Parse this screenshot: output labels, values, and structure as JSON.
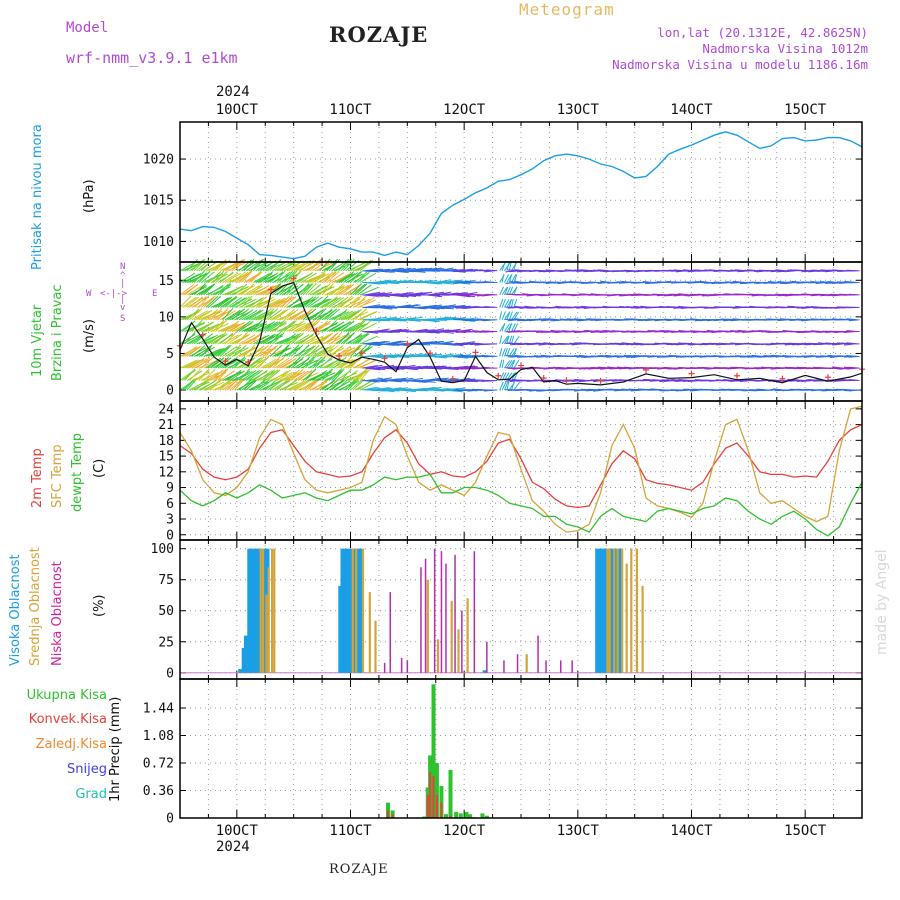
{
  "header": {
    "model_label": "Model",
    "model_name": "wrf-nmm_v3.9.1 e1km",
    "title": "ROZAJE",
    "meteogram": "Meteogram",
    "lonlat": "lon,lat (20.1312E, 42.8625N)",
    "elevation": "Nadmorska Visina 1012m",
    "model_elevation": "Nadmorska Visina u modelu 1186.16m",
    "year": "2024",
    "footer": "ROZAJE",
    "watermark": "made by Angel"
  },
  "colors": {
    "pressure": "#1a9ee6",
    "temp2m": "#e8403a",
    "sfc": "#d4a43a",
    "dewpt": "#2ec22e",
    "high": "#1a9ee6",
    "mid": "#d4a43a",
    "low": "#b02fb0",
    "total": "#2ec22e",
    "convective": "#e8403a",
    "frozen": "#f08a30",
    "snow": "#4040e0",
    "graupel": "#20c0b0",
    "purple_text": "#b04ad8",
    "orange_text": "#e8b860"
  },
  "x_axis": {
    "labels": [
      "10OCT",
      "11OCT",
      "12OCT",
      "13OCT",
      "14OCT",
      "15OCT"
    ],
    "range_days": [
      9.5,
      15.5
    ]
  },
  "chart_data": [
    {
      "type": "line",
      "panel": "pressure",
      "label": "Pritisak na nivou mora",
      "ylabel": "(hPa)",
      "yticks": [
        1010,
        1015,
        1020
      ],
      "ylim": [
        1007.5,
        1024.5
      ],
      "series": [
        {
          "x": [
            9.5,
            9.6,
            9.7,
            9.8,
            9.9,
            10.0,
            10.1,
            10.2,
            10.3,
            10.4,
            10.5,
            10.6,
            10.7,
            10.8,
            10.9,
            11.0,
            11.1,
            11.2,
            11.3,
            11.4,
            11.5,
            11.6,
            11.7,
            11.8,
            11.9,
            12.0,
            12.1,
            12.2,
            12.3,
            12.4,
            12.5,
            12.6,
            12.7,
            12.8,
            12.9,
            13.0,
            13.1,
            13.2,
            13.3,
            13.4,
            13.5,
            13.6,
            13.7,
            13.8,
            13.9,
            14.0,
            14.1,
            14.2,
            14.3,
            14.4,
            14.5,
            14.6,
            14.7,
            14.8,
            14.9,
            15.0,
            15.1,
            15.2,
            15.3,
            15.4,
            15.5
          ],
          "values": [
            1011.5,
            1011.3,
            1011.8,
            1011.7,
            1011.2,
            1010.4,
            1009.6,
            1008.4,
            1008.3,
            1008.1,
            1007.9,
            1008.2,
            1009.3,
            1009.8,
            1009.3,
            1009.1,
            1008.7,
            1008.7,
            1008.3,
            1008.7,
            1008.4,
            1009.5,
            1011.0,
            1013.4,
            1014.4,
            1015.1,
            1015.9,
            1016.5,
            1017.3,
            1017.5,
            1018.1,
            1018.8,
            1019.8,
            1020.4,
            1020.6,
            1020.4,
            1020.0,
            1019.4,
            1019.1,
            1018.5,
            1017.7,
            1017.9,
            1019.1,
            1020.6,
            1021.2,
            1021.7,
            1022.3,
            1022.9,
            1023.3,
            1022.9,
            1022.1,
            1021.3,
            1021.6,
            1022.5,
            1022.6,
            1022.2,
            1022.3,
            1022.6,
            1022.6,
            1022.2,
            1021.5
          ]
        }
      ]
    },
    {
      "type": "line",
      "panel": "wind",
      "label1": "10m Vjetar",
      "label2": "Brzina i Pravac",
      "ylabel": "(m/s)",
      "compass": {
        "north": "N",
        "west": "W",
        "east": "E",
        "south": "S"
      },
      "yticks": [
        0,
        5,
        10,
        15
      ],
      "ylim": [
        -1.5,
        17.5
      ],
      "series": [
        {
          "name": "speed",
          "x": [
            9.5,
            9.6,
            9.7,
            9.8,
            9.9,
            10.0,
            10.1,
            10.2,
            10.3,
            10.4,
            10.5,
            10.6,
            10.7,
            10.8,
            10.9,
            11.0,
            11.1,
            11.2,
            11.3,
            11.4,
            11.5,
            11.6,
            11.7,
            11.8,
            11.9,
            12.0,
            12.1,
            12.2,
            12.3,
            12.4,
            12.5,
            12.6,
            12.7,
            12.8,
            12.9,
            13.0,
            13.2,
            13.4,
            13.6,
            13.8,
            14.0,
            14.2,
            14.4,
            14.6,
            14.8,
            15.0,
            15.2,
            15.4,
            15.5
          ],
          "values": [
            5.5,
            9.2,
            7.0,
            4.5,
            3.4,
            4.2,
            3.3,
            6.6,
            13.2,
            14.2,
            14.7,
            10.8,
            7.5,
            4.9,
            4.1,
            3.7,
            4.5,
            4.2,
            3.8,
            2.5,
            5.8,
            6.9,
            4.5,
            1.2,
            1.0,
            1.3,
            4.6,
            2.4,
            1.4,
            1.5,
            2.8,
            3.1,
            1.1,
            1.3,
            0.8,
            0.9,
            0.7,
            1.1,
            2.2,
            1.6,
            1.7,
            2.1,
            1.4,
            1.6,
            1.0,
            2.0,
            1.2,
            1.8,
            2.3
          ]
        }
      ]
    },
    {
      "type": "line",
      "panel": "temperature",
      "label_2m": "2m Temp",
      "label_sfc": "SFC Temp",
      "label_dew": "dewpt Temp",
      "ylabel": "(C)",
      "yticks": [
        0,
        3,
        6,
        9,
        12,
        15,
        18,
        21,
        24
      ],
      "ylim": [
        -1,
        25.5
      ],
      "series": [
        {
          "name": "2m Temp",
          "x": [
            9.5,
            9.6,
            9.7,
            9.8,
            9.9,
            10.0,
            10.1,
            10.2,
            10.3,
            10.4,
            10.5,
            10.6,
            10.7,
            10.8,
            10.9,
            11.0,
            11.1,
            11.2,
            11.3,
            11.4,
            11.5,
            11.6,
            11.7,
            11.8,
            11.9,
            12.0,
            12.1,
            12.2,
            12.3,
            12.4,
            12.5,
            12.6,
            12.7,
            12.8,
            12.9,
            13.0,
            13.1,
            13.2,
            13.3,
            13.4,
            13.5,
            13.6,
            13.7,
            13.8,
            13.9,
            14.0,
            14.1,
            14.2,
            14.3,
            14.4,
            14.5,
            14.6,
            14.7,
            14.8,
            14.9,
            15.0,
            15.1,
            15.2,
            15.3,
            15.4,
            15.5
          ],
          "values": [
            17,
            15.5,
            12.5,
            11,
            10.5,
            11,
            12.5,
            16.5,
            19.5,
            20,
            17,
            14,
            12,
            11.5,
            11,
            11.2,
            12,
            15.5,
            18.5,
            20,
            17.5,
            13.5,
            11.5,
            12,
            11.2,
            11,
            12,
            14,
            17.5,
            18.2,
            14.5,
            10,
            8.8,
            6.8,
            5.5,
            5.2,
            5.5,
            9.5,
            13.5,
            16,
            14.5,
            10.5,
            9.8,
            9.5,
            9,
            8.5,
            10,
            13.5,
            16.5,
            17.5,
            15,
            12,
            11.5,
            11.5,
            11,
            11.2,
            11,
            14,
            18,
            20,
            21
          ]
        },
        {
          "name": "SFC Temp",
          "x": [
            9.5,
            9.6,
            9.7,
            9.8,
            9.9,
            10.0,
            10.1,
            10.2,
            10.3,
            10.4,
            10.5,
            10.6,
            10.7,
            10.8,
            10.9,
            11.0,
            11.1,
            11.2,
            11.3,
            11.4,
            11.5,
            11.6,
            11.7,
            11.8,
            11.9,
            12.0,
            12.1,
            12.2,
            12.3,
            12.4,
            12.5,
            12.6,
            12.7,
            12.8,
            12.9,
            13.0,
            13.1,
            13.2,
            13.3,
            13.4,
            13.5,
            13.6,
            13.7,
            13.8,
            13.9,
            14.0,
            14.1,
            14.2,
            14.3,
            14.4,
            14.5,
            14.6,
            14.7,
            14.8,
            14.9,
            15.0,
            15.1,
            15.2,
            15.3,
            15.4,
            15.5
          ],
          "values": [
            19.5,
            16,
            10.5,
            8,
            7.5,
            9,
            12,
            18.5,
            22,
            21,
            15.5,
            10.5,
            8.5,
            8,
            8.5,
            9,
            10,
            18,
            22.5,
            21,
            15,
            10,
            8.5,
            9.5,
            8.5,
            7.5,
            10,
            15,
            19.5,
            19,
            12.5,
            6.5,
            4.5,
            2,
            0.5,
            0.8,
            2,
            8,
            17,
            21,
            16.5,
            7,
            5.5,
            5,
            4.3,
            3.3,
            6,
            14,
            21,
            22,
            16,
            8,
            6,
            6.5,
            5,
            3.5,
            2.5,
            3.5,
            16,
            24,
            24.5
          ]
        },
        {
          "name": "dewpt Temp",
          "x": [
            9.5,
            9.6,
            9.7,
            9.8,
            9.9,
            10.0,
            10.1,
            10.2,
            10.3,
            10.4,
            10.5,
            10.6,
            10.7,
            10.8,
            10.9,
            11.0,
            11.1,
            11.2,
            11.3,
            11.4,
            11.5,
            11.6,
            11.7,
            11.8,
            11.9,
            12.0,
            12.1,
            12.2,
            12.3,
            12.4,
            12.5,
            12.6,
            12.7,
            12.8,
            12.9,
            13.0,
            13.1,
            13.2,
            13.3,
            13.4,
            13.5,
            13.6,
            13.7,
            13.8,
            13.9,
            14.0,
            14.1,
            14.2,
            14.3,
            14.4,
            14.5,
            14.6,
            14.7,
            14.8,
            14.9,
            15.0,
            15.1,
            15.2,
            15.3,
            15.4,
            15.5
          ],
          "values": [
            8.5,
            6.5,
            5.5,
            6.5,
            8,
            7,
            8,
            9.5,
            8.5,
            7,
            7.5,
            8,
            7,
            6.5,
            7.5,
            8.5,
            8.5,
            9.5,
            11,
            10.5,
            11,
            11,
            11.5,
            8,
            8,
            9,
            9,
            8.5,
            7.5,
            6,
            5.5,
            5,
            3.5,
            3.5,
            2,
            1.5,
            0.5,
            3.5,
            5,
            3.5,
            3,
            2.5,
            4.5,
            5,
            4.5,
            4,
            5,
            5.5,
            7,
            6.5,
            4.5,
            3,
            2,
            3.5,
            4.5,
            3,
            1,
            -0.2,
            1.5,
            6,
            10
          ]
        }
      ]
    },
    {
      "type": "bar",
      "panel": "cloud",
      "label_high": "Visoka Oblacnost",
      "label_mid": "Srednja Oblacnost",
      "label_low": "Niska Oblacnost",
      "ylabel": "(%)",
      "yticks": [
        0,
        25,
        50,
        75,
        100
      ],
      "ylim": [
        -5,
        107
      ],
      "series": [
        {
          "name": "Visoka Oblacnost",
          "x": [
            10.03,
            10.06,
            10.08,
            10.11,
            10.13,
            10.15,
            10.18,
            10.2,
            10.22,
            10.25,
            10.27,
            10.91,
            10.93,
            10.95,
            10.97,
            10.99,
            11.01,
            11.03,
            11.06,
            11.08,
            11.1,
            12.18,
            13.17,
            13.19,
            13.21,
            13.23,
            13.25,
            13.27,
            13.29,
            13.31,
            13.34,
            13.36,
            13.38
          ],
          "values": [
            3,
            20,
            30,
            100,
            100,
            100,
            100,
            100,
            100,
            100,
            100,
            70,
            100,
            100,
            100,
            100,
            100,
            100,
            100,
            100,
            100,
            2,
            100,
            100,
            100,
            100,
            100,
            100,
            100,
            100,
            100,
            100,
            100
          ]
        },
        {
          "name": "Srednja Oblacnost",
          "x": [
            10.21,
            10.23,
            10.26,
            10.28,
            10.31,
            10.33,
            11.02,
            11.05,
            11.11,
            11.17,
            11.22,
            11.68,
            11.77,
            11.89,
            11.95,
            12.03,
            12.55,
            13.26,
            13.28,
            13.32,
            13.35,
            13.39,
            13.43,
            13.47,
            13.52,
            13.57
          ],
          "values": [
            100,
            100,
            63,
            85,
            100,
            100,
            100,
            100,
            100,
            65,
            42,
            75,
            27,
            58,
            35,
            60,
            15,
            100,
            100,
            100,
            100,
            100,
            88,
            100,
            100,
            70
          ]
        },
        {
          "name": "Niska Oblacnost",
          "x": [
            11.3,
            11.35,
            11.45,
            11.5,
            11.62,
            11.66,
            11.74,
            11.8,
            11.84,
            11.92,
            11.98,
            12.09,
            12.2,
            12.35,
            12.47,
            12.65,
            12.72,
            12.85,
            12.95
          ],
          "values": [
            8,
            65,
            12,
            10,
            85,
            92,
            100,
            98,
            88,
            95,
            50,
            98,
            25,
            10,
            15,
            30,
            10,
            10,
            10
          ]
        }
      ]
    },
    {
      "type": "bar",
      "panel": "precipitation",
      "label_total": "Ukupna Kisa",
      "label_conv": "Konvek.Kisa",
      "label_frozen": "Zaledj.Kisa",
      "label_snow": "Snijeg",
      "label_graupel": "Grad",
      "ylabel": "1hr Precip (mm)",
      "yticks": [
        "0",
        "0.36",
        "0.72",
        "1.08",
        "1.44"
      ],
      "ylim": [
        0,
        1.82
      ],
      "series": [
        {
          "name": "Ukupna Kisa",
          "x": [
            11.33,
            11.37,
            11.65,
            11.68,
            11.7,
            11.73,
            11.76,
            11.8,
            11.84,
            11.88,
            11.93,
            11.97,
            12.02,
            12.05,
            12.09,
            12.16,
            12.2
          ],
          "values": [
            0.2,
            0.1,
            0.02,
            0.4,
            0.82,
            1.75,
            0.72,
            0.42,
            0.05,
            0.63,
            0.08,
            0.06,
            0.08,
            0.05,
            0.01,
            0.06,
            0.03
          ]
        },
        {
          "name": "Konvek.Kisa",
          "x": [
            11.33,
            11.37,
            11.68,
            11.7,
            11.73,
            11.76,
            11.8,
            11.88
          ],
          "values": [
            0.1,
            0.05,
            0.3,
            0.6,
            0.55,
            0.3,
            0.2,
            0.03
          ]
        }
      ]
    }
  ]
}
